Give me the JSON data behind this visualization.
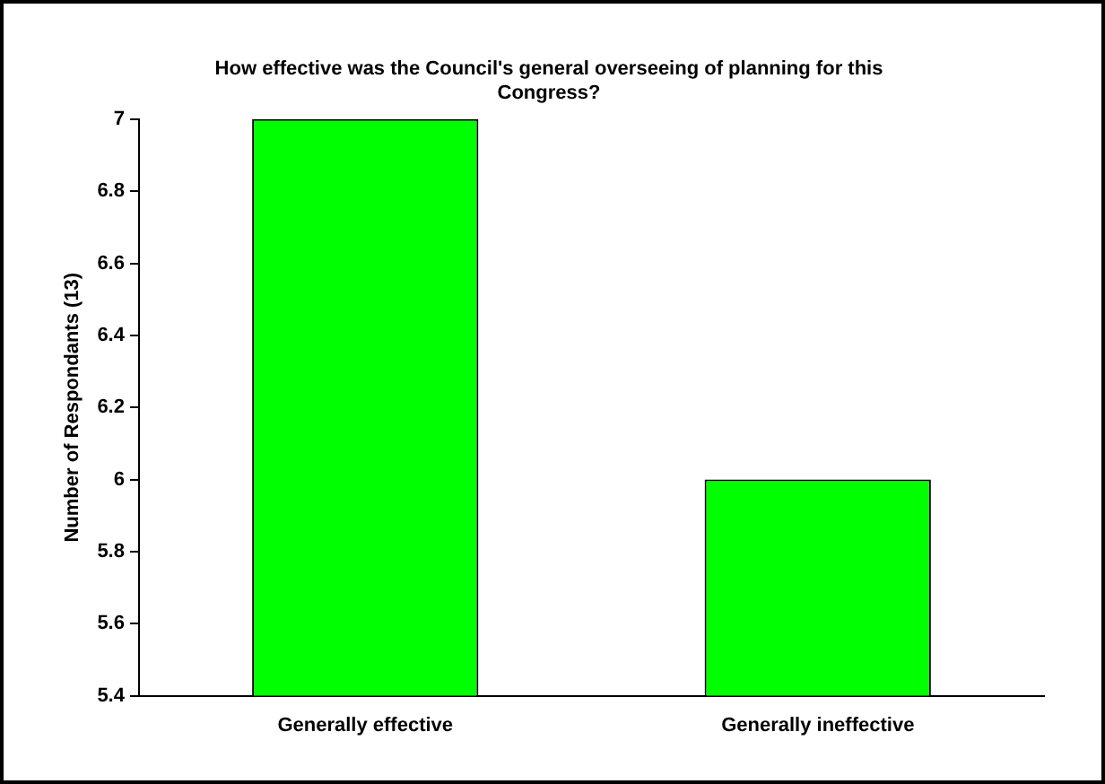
{
  "chart_data": {
    "type": "bar",
    "title": "How effective was the Council's general overseeing of planning for this Congress?",
    "ylabel": "Number of Respondants (13)",
    "categories": [
      "Generally effective",
      "Generally ineffective"
    ],
    "values": [
      7,
      6
    ],
    "color": "#00ff00",
    "ylim": [
      5.4,
      7
    ],
    "yticks": [
      5.4,
      5.6,
      5.8,
      6,
      6.2,
      6.4,
      6.6,
      6.8,
      7
    ],
    "grid": false,
    "legend": false
  }
}
